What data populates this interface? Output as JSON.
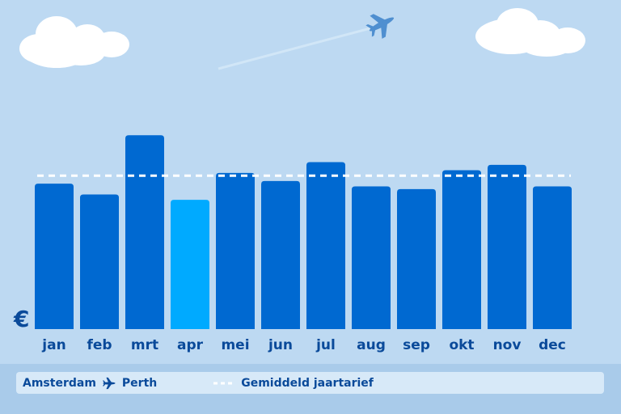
{
  "chart_data": {
    "type": "bar",
    "categories": [
      "jan",
      "feb",
      "mrt",
      "apr",
      "mei",
      "jun",
      "jul",
      "aug",
      "sep",
      "okt",
      "nov",
      "dec"
    ],
    "values": [
      54,
      50,
      72,
      48,
      58,
      55,
      62,
      53,
      52,
      59,
      61,
      53
    ],
    "highlight_index": 3,
    "average": 57,
    "ylim": [
      0,
      100
    ],
    "ylabel": "€",
    "grid": false,
    "legend_position": "bottom"
  },
  "colors": {
    "bar": "#0069d1",
    "bar_highlight": "#00aaff",
    "average_line": "#ffffff",
    "text": "#0a4a9a",
    "background": "#bdd9f2"
  },
  "legend": {
    "origin": "Amsterdam",
    "destination": "Perth",
    "route_icon": "airplane-icon",
    "average_label": "Gemiddeld jaartarief"
  },
  "decorations": [
    "cloud-icon",
    "airplane-icon"
  ]
}
